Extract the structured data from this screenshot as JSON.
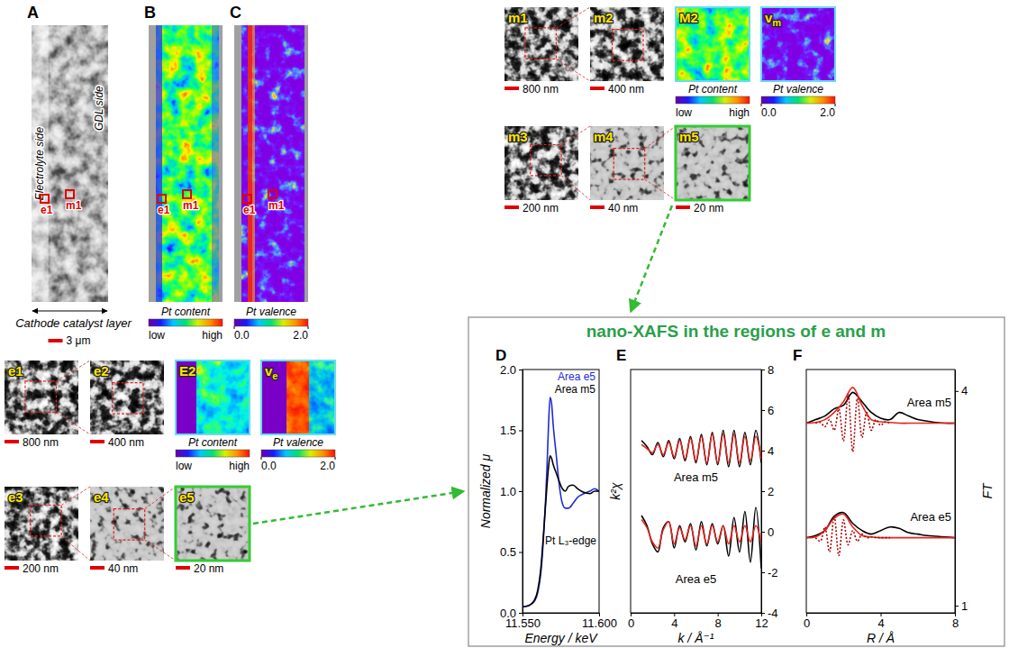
{
  "overview": [
    {
      "letter": "A",
      "side_labels": [
        "Electrolyte side",
        "GDL side"
      ],
      "caption": "Cathode catalyst layer",
      "scale_bar": "3 μm",
      "regions": [
        "e1",
        "m1"
      ]
    },
    {
      "letter": "B",
      "title": "Pt content",
      "low": "low",
      "high": "high",
      "regions": [
        "e1",
        "m1"
      ]
    },
    {
      "letter": "C",
      "title": "Pt valence",
      "colorbar": {
        "range": [
          0,
          2
        ],
        "ticks": [
          {
            "value": 0,
            "label": "0.0"
          },
          {
            "value": 2,
            "label": "2.0"
          }
        ]
      },
      "regions": [
        "e1",
        "m1"
      ]
    }
  ],
  "zoom_series": [
    {
      "images": [
        {
          "label": "m1",
          "scale_bar": "800 nm"
        },
        {
          "label": "m2",
          "scale_bar": "400 nm"
        },
        {
          "label": "m3",
          "scale_bar": "200 nm"
        },
        {
          "label": "m4",
          "scale_bar": "40 nm"
        },
        {
          "label": "m5",
          "scale_bar": "20 nm"
        }
      ],
      "content_map": {
        "label": "M2",
        "title": "Pt content",
        "low": "low",
        "high": "high"
      },
      "valence_map": {
        "label": "v",
        "label_sub": "m",
        "title": "Pt valence",
        "colorbar": {
          "range": [
            0,
            2
          ],
          "ticks": [
            {
              "value": 0,
              "label": "0.0"
            },
            {
              "value": 2,
              "label": "2.0"
            }
          ]
        }
      }
    },
    {
      "images": [
        {
          "label": "e1",
          "scale_bar": "800 nm"
        },
        {
          "label": "e2",
          "scale_bar": "400 nm"
        },
        {
          "label": "e3",
          "scale_bar": "200 nm"
        },
        {
          "label": "e4",
          "scale_bar": "40 nm"
        },
        {
          "label": "e5",
          "scale_bar": "20 nm"
        }
      ],
      "content_map": {
        "label": "E2",
        "title": "Pt content",
        "low": "low",
        "high": "high"
      },
      "valence_map": {
        "label": "v",
        "label_sub": "e",
        "title": "Pt valence",
        "colorbar": {
          "range": [
            0,
            2
          ],
          "ticks": [
            {
              "value": 0,
              "label": "0.0"
            },
            {
              "value": 2,
              "label": "2.0"
            }
          ]
        }
      }
    }
  ],
  "xafs_title": "nano-XAFS in the regions of e and m",
  "chart_data": [
    {
      "type": "line",
      "letter": "D",
      "xlabel": "Energy / keV",
      "ylabel": "Normalized μ",
      "annotation": "Pt L₃-edge",
      "x": [
        11.55,
        11.554,
        11.558,
        11.56,
        11.562,
        11.564,
        11.566,
        11.567,
        11.568,
        11.569,
        11.57,
        11.572,
        11.574,
        11.576,
        11.578,
        11.58,
        11.583,
        11.586,
        11.59,
        11.594,
        11.597,
        11.6
      ],
      "xlim": [
        11.55,
        11.6
      ],
      "xticks": [
        {
          "value": 11.55,
          "label": "11.550"
        },
        {
          "value": 11.6,
          "label": "11.600"
        }
      ],
      "ylim": [
        0,
        2
      ],
      "yticks": [
        {
          "value": 0,
          "label": "0.0"
        },
        {
          "value": 0.5,
          "label": "0.5"
        },
        {
          "value": 1,
          "label": "1.0"
        },
        {
          "value": 1.5,
          "label": "1.5"
        },
        {
          "value": 2,
          "label": "2.0"
        }
      ],
      "legend": "upper right",
      "series": [
        {
          "name": "Area e5",
          "color": "#1e2ad8",
          "values": [
            0.05,
            0.06,
            0.1,
            0.17,
            0.33,
            0.68,
            1.2,
            1.55,
            1.77,
            1.72,
            1.55,
            1.3,
            1.05,
            0.9,
            0.86,
            0.86,
            0.9,
            0.95,
            0.98,
            1.0,
            1.02,
            1.0
          ]
        },
        {
          "name": "Area m5",
          "color": "#000000",
          "values": [
            0.05,
            0.06,
            0.11,
            0.19,
            0.37,
            0.7,
            1.05,
            1.2,
            1.29,
            1.27,
            1.22,
            1.15,
            1.08,
            1.02,
            1.0,
            1.04,
            1.05,
            1.02,
            0.99,
            0.98,
            1.0,
            1.0
          ]
        }
      ]
    },
    {
      "type": "line",
      "letter": "E",
      "xlabel": "k / Å⁻¹",
      "ylabel": "k²χ",
      "x": [
        1,
        1.5,
        2,
        2.5,
        3,
        3.5,
        4,
        4.5,
        5,
        5.5,
        6,
        6.5,
        7,
        7.5,
        8,
        8.5,
        9,
        9.5,
        10,
        10.5,
        11,
        11.5,
        12
      ],
      "xlim": [
        0,
        12
      ],
      "xticks": [
        0,
        4,
        8,
        12
      ],
      "ylim": [
        -4,
        8
      ],
      "yticks": [
        -4,
        -2,
        0,
        2,
        4,
        6,
        8
      ],
      "groups": [
        {
          "label": "Area m5",
          "series": [
            {
              "color": "#000000",
              "line_style": "solid",
              "values": [
                4.5,
                4.2,
                3.8,
                4.4,
                3.7,
                4.5,
                3.6,
                4.6,
                3.5,
                4.7,
                3.4,
                4.8,
                3.3,
                4.9,
                3.3,
                5.0,
                3.2,
                5.0,
                3.2,
                4.9,
                3.3,
                5.0,
                3.4
              ]
            },
            {
              "color": "#e8251f",
              "line_style": "solid",
              "values": [
                4.3,
                4.1,
                3.9,
                4.3,
                3.8,
                4.4,
                3.7,
                4.5,
                3.6,
                4.6,
                3.5,
                4.7,
                3.4,
                4.8,
                3.4,
                4.8,
                3.4,
                4.8,
                3.4,
                4.7,
                3.5,
                4.7,
                3.6
              ]
            }
          ]
        },
        {
          "label": "Area e5",
          "series": [
            {
              "color": "#000000",
              "line_style": "solid",
              "values": [
                0.8,
                0.3,
                -0.6,
                -1.0,
                0.2,
                0.5,
                -0.8,
                0.3,
                -0.5,
                0.4,
                -0.9,
                0.5,
                -0.7,
                0.4,
                -0.6,
                0.3,
                -1.2,
                0.7,
                -1.0,
                1.0,
                -1.5,
                1.2,
                -1.8
              ]
            },
            {
              "color": "#e8251f",
              "line_style": "solid",
              "values": [
                0.6,
                0.2,
                -0.5,
                -0.8,
                0.1,
                0.5,
                -0.6,
                0.2,
                -0.4,
                0.3,
                -0.7,
                0.3,
                -0.6,
                0.3,
                -0.5,
                0.3,
                -0.6,
                0.3,
                -0.5,
                0.3,
                -0.5,
                0.3,
                -0.5
              ]
            }
          ]
        }
      ]
    },
    {
      "type": "line",
      "letter": "F",
      "xlabel": "R / Å",
      "ylabel": "FT",
      "xlim": [
        0,
        8
      ],
      "xticks": [
        0,
        4,
        8
      ],
      "ylim": [
        0.9,
        4.3
      ],
      "yticks": [
        1,
        4
      ],
      "groups": [
        {
          "label": "Area m5",
          "series": [
            {
              "color": "#000000",
              "line_style": "solid",
              "x": [
                0,
                0.5,
                1,
                1.5,
                2,
                2.5,
                3,
                3.5,
                4,
                4.5,
                5,
                5.5,
                6,
                6.5,
                7,
                7.5,
                8
              ],
              "values": [
                3.55,
                3.6,
                3.65,
                3.75,
                3.8,
                3.98,
                3.85,
                3.7,
                3.62,
                3.6,
                3.7,
                3.65,
                3.6,
                3.58,
                3.56,
                3.55,
                3.55
              ]
            },
            {
              "color": "#e8251f",
              "line_style": "solid",
              "x": [
                0,
                0.5,
                1,
                1.5,
                2,
                2.5,
                3,
                3.5,
                4,
                4.5,
                5,
                5.5,
                6,
                6.5,
                7,
                7.5,
                8
              ],
              "values": [
                3.55,
                3.56,
                3.6,
                3.7,
                3.85,
                4.05,
                3.8,
                3.6,
                3.57,
                3.56,
                3.55,
                3.55,
                3.55,
                3.55,
                3.55,
                3.55,
                3.55
              ]
            },
            {
              "color": "#b00000",
              "line_style": "dotted",
              "x": [
                0.5,
                0.75,
                1,
                1.25,
                1.5,
                1.75,
                2,
                2.25,
                2.5,
                2.75,
                3,
                3.25,
                3.5,
                3.75,
                4,
                4.25,
                4.5
              ],
              "values": [
                3.55,
                3.56,
                3.5,
                3.6,
                3.45,
                3.75,
                3.3,
                3.95,
                3.15,
                3.9,
                3.35,
                3.7,
                3.45,
                3.6,
                3.52,
                3.57,
                3.55
              ]
            }
          ]
        },
        {
          "label": "Area e5",
          "series": [
            {
              "color": "#000000",
              "line_style": "solid",
              "x": [
                0,
                0.5,
                1,
                1.5,
                2,
                2.5,
                3,
                3.5,
                4,
                4.5,
                5,
                5.5,
                6,
                6.5,
                7,
                7.5,
                8
              ],
              "values": [
                1.95,
                1.98,
                2.05,
                2.25,
                2.3,
                2.15,
                2.05,
                2.0,
                2.05,
                2.1,
                2.08,
                2.02,
                2.0,
                1.98,
                1.97,
                1.96,
                1.95
              ]
            },
            {
              "color": "#e8251f",
              "line_style": "solid",
              "x": [
                0,
                0.5,
                1,
                1.5,
                2,
                2.5,
                3,
                3.5,
                4,
                4.5,
                5,
                5.5,
                6,
                6.5,
                7,
                7.5,
                8
              ],
              "values": [
                1.95,
                1.96,
                2.05,
                2.22,
                2.28,
                2.1,
                1.98,
                1.96,
                1.95,
                1.95,
                1.95,
                1.95,
                1.95,
                1.95,
                1.95,
                1.95,
                1.95
              ]
            },
            {
              "color": "#b00000",
              "line_style": "dotted",
              "x": [
                0.5,
                0.75,
                1,
                1.25,
                1.5,
                1.75,
                2,
                2.25,
                2.5,
                2.75,
                3,
                3.25,
                3.5,
                3.75,
                4,
                4.25,
                4.5
              ],
              "values": [
                1.95,
                1.9,
                2.1,
                1.75,
                2.25,
                1.7,
                2.2,
                1.85,
                2.05,
                1.9,
                2.0,
                1.95,
                1.96,
                1.95,
                1.95,
                1.95,
                1.95
              ]
            }
          ]
        }
      ]
    }
  ]
}
